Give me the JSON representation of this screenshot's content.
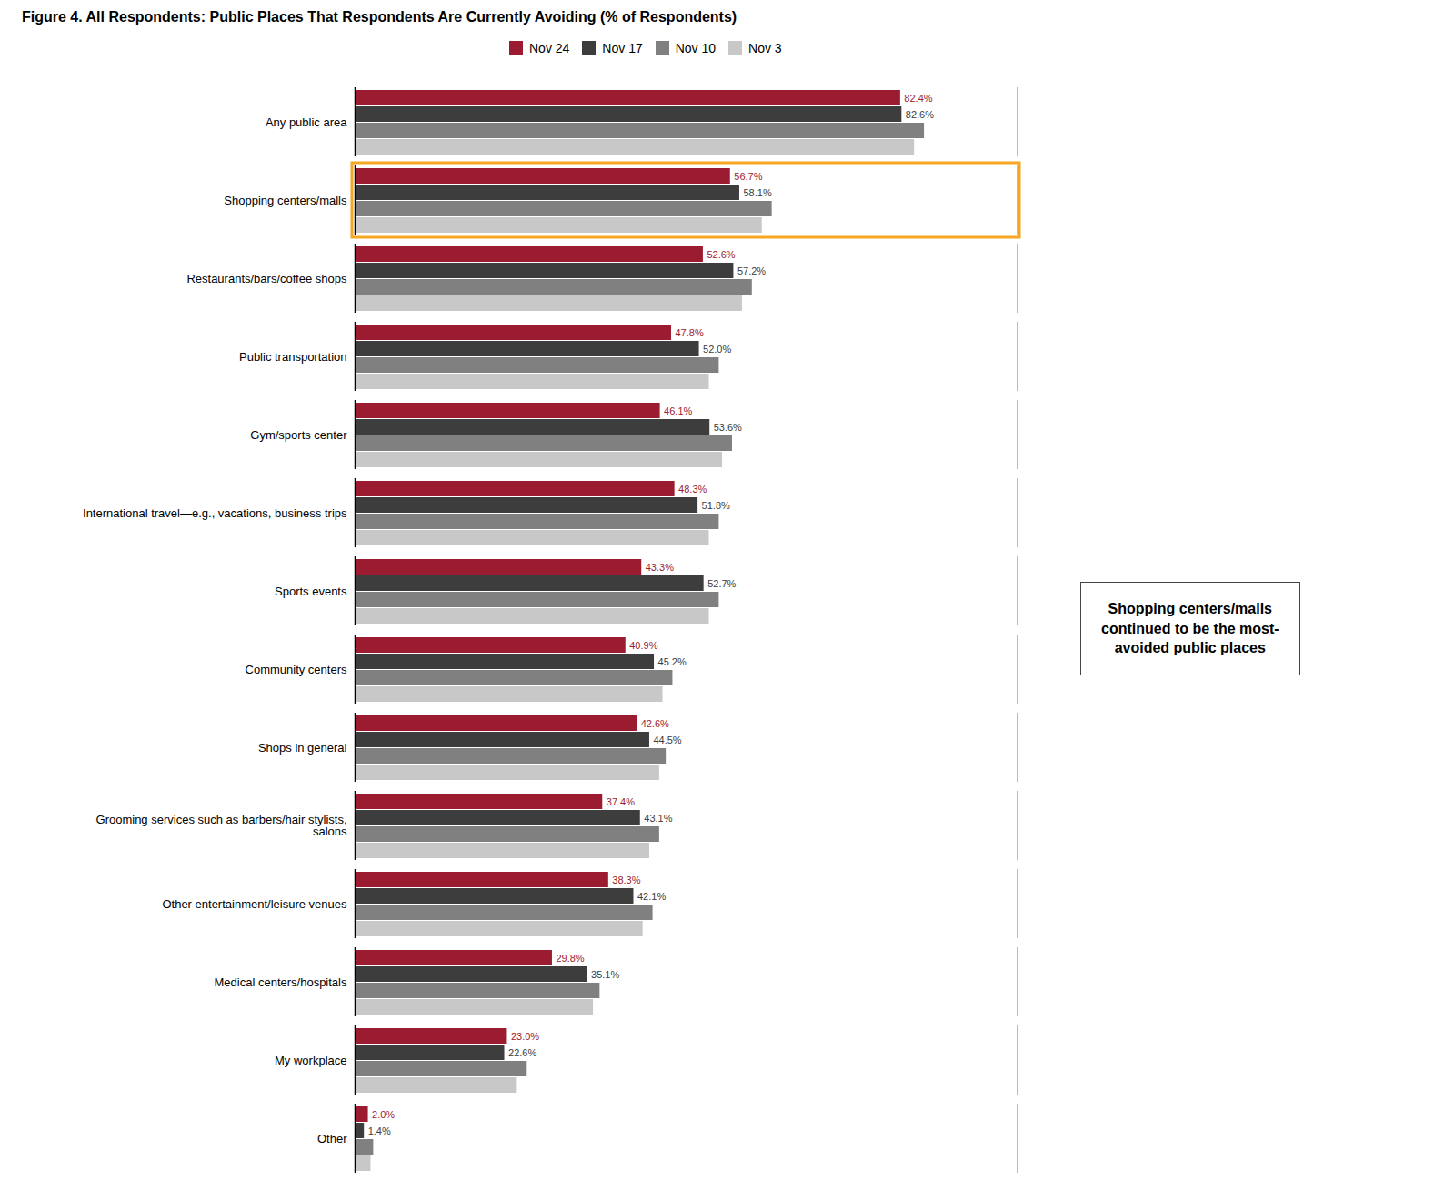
{
  "chart_data": {
    "type": "bar",
    "orientation": "horizontal",
    "title": "Figure 4. All Respondents: Public Places That Respondents Are Currently Avoiding (% of Respondents)",
    "categories": [
      "Any public area",
      "Shopping centers/malls",
      "Restaurants/bars/coffee shops",
      "Public transportation",
      "Gym/sports center",
      "International travel—e.g., vacations, business trips",
      "Sports events",
      "Community centers",
      "Shops in general",
      "Grooming services such as barbers/hair stylists,\nsalons",
      "Other entertainment/leisure venues",
      "Medical centers/hospitals",
      "My workplace",
      "Other"
    ],
    "series": [
      {
        "name": "Nov 24",
        "color": "#9B1B30",
        "values": [
          82.4,
          56.7,
          52.6,
          47.8,
          46.1,
          48.3,
          43.3,
          40.9,
          42.6,
          37.4,
          38.3,
          29.8,
          23.0,
          2.0
        ],
        "data_labels": true,
        "value_labels": [
          "82.4%",
          "56.7%",
          "52.6%",
          "47.8%",
          "46.1%",
          "48.3%",
          "43.3%",
          "40.9%",
          "42.6%",
          "37.4%",
          "38.3%",
          "29.8%",
          "23.0%",
          "2.0%"
        ]
      },
      {
        "name": "Nov 17",
        "color": "#3D3D3D",
        "values": [
          82.6,
          58.1,
          57.2,
          52.0,
          53.6,
          51.8,
          52.7,
          45.2,
          44.5,
          43.1,
          42.1,
          35.1,
          22.6,
          1.4
        ],
        "data_labels": true,
        "value_labels": [
          "82.6%",
          "58.1%",
          "57.2%",
          "52.0%",
          "53.6%",
          "51.8%",
          "52.7%",
          "45.2%",
          "44.5%",
          "43.1%",
          "42.1%",
          "35.1%",
          "22.6%",
          "1.4%"
        ]
      },
      {
        "name": "Nov 10",
        "color": "#808080",
        "values": [
          86.0,
          63.0,
          60.0,
          55.0,
          57.0,
          55.0,
          55.0,
          48.0,
          47.0,
          46.0,
          45.0,
          37.0,
          26.0,
          2.8
        ]
      },
      {
        "name": "Nov 3",
        "color": "#C8C8C8",
        "values": [
          84.5,
          61.5,
          58.5,
          53.5,
          55.5,
          53.5,
          53.5,
          46.5,
          46.0,
          44.5,
          43.5,
          36.0,
          24.5,
          2.4
        ]
      }
    ],
    "xlim": [
      0,
      100
    ],
    "tick_labels": "y",
    "grid": false,
    "legend": "top",
    "annotations": [
      {
        "text": "Shopping centers/malls\ncontinued to be the most-\navoided public places",
        "category": "Shopping centers/malls",
        "color": "#F5A623"
      }
    ]
  }
}
